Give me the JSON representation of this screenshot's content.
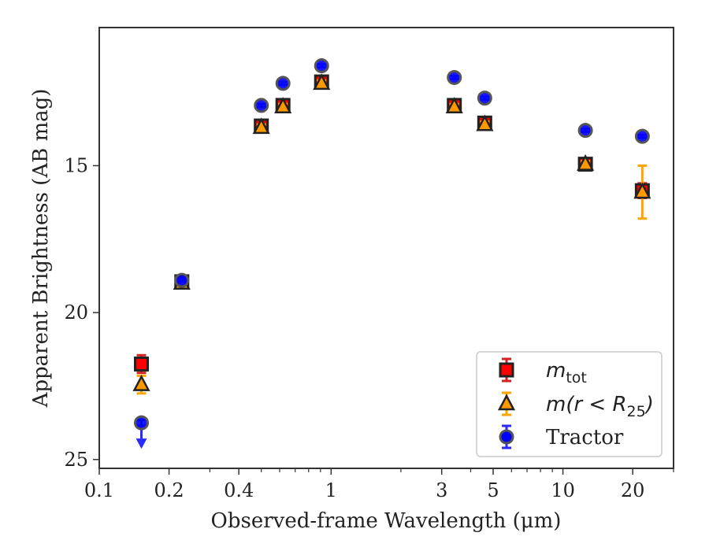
{
  "chart_data": {
    "type": "scatter",
    "xscale": "log",
    "xlim": [
      0.1,
      30
    ],
    "ylim": [
      25.3,
      10.3
    ],
    "y_inverted": true,
    "xlabel": "Observed-frame Wavelength (μm)",
    "ylabel": "Apparent Brightness (AB mag)",
    "x_ticks": [
      {
        "value": 0.1,
        "label": "0.1"
      },
      {
        "value": 0.2,
        "label": "0.2"
      },
      {
        "value": 0.4,
        "label": "0.4"
      },
      {
        "value": 1,
        "label": "1"
      },
      {
        "value": 3,
        "label": "3"
      },
      {
        "value": 5,
        "label": "5"
      },
      {
        "value": 10,
        "label": "10"
      },
      {
        "value": 20,
        "label": "20"
      }
    ],
    "y_ticks": [
      {
        "value": 15,
        "label": "15"
      },
      {
        "value": 20,
        "label": "20"
      },
      {
        "value": 25,
        "label": "25"
      }
    ],
    "grid": false,
    "legend_position": "lower-right",
    "series": [
      {
        "name": "m_tot",
        "legend_main": "m",
        "legend_sub": "tot",
        "legend_suffix": "",
        "marker": "square",
        "color": "#ff0000",
        "edge_color": "#222222",
        "error_color": "#d62020",
        "points": [
          {
            "x": 0.152,
            "y": 21.75,
            "err": 0.3
          },
          {
            "x": 0.227,
            "y": 18.95,
            "err": 0.08
          },
          {
            "x": 0.5,
            "y": 13.65,
            "err": 0.15
          },
          {
            "x": 0.62,
            "y": 12.95,
            "err": 0.15
          },
          {
            "x": 0.91,
            "y": 12.15,
            "err": 0.1
          },
          {
            "x": 3.4,
            "y": 12.95,
            "err": 0.1
          },
          {
            "x": 4.6,
            "y": 13.55,
            "err": 0.12
          },
          {
            "x": 12.5,
            "y": 14.95,
            "err": 0.1
          },
          {
            "x": 22.0,
            "y": 15.85,
            "err": 0.25
          }
        ]
      },
      {
        "name": "m(r < R25)",
        "legend_main": "m(r < R",
        "legend_sub": "25",
        "legend_suffix": ")",
        "marker": "triangle",
        "color": "#ff9900",
        "edge_color": "#222222",
        "error_color": "#ffa500",
        "points": [
          {
            "x": 0.152,
            "y": 22.45,
            "err": 0.3
          },
          {
            "x": 0.227,
            "y": 19.0,
            "err": 0.08
          },
          {
            "x": 0.5,
            "y": 13.7,
            "err": 0.1
          },
          {
            "x": 0.62,
            "y": 13.0,
            "err": 0.1
          },
          {
            "x": 0.91,
            "y": 12.2,
            "err": 0.1
          },
          {
            "x": 3.4,
            "y": 13.0,
            "err": 0.1
          },
          {
            "x": 4.6,
            "y": 13.6,
            "err": 0.1
          },
          {
            "x": 12.5,
            "y": 14.95,
            "err": 0.1
          },
          {
            "x": 22.0,
            "y": 15.9,
            "err": 0.9
          }
        ]
      },
      {
        "name": "Tractor",
        "legend_main": "Tractor",
        "legend_sub": "",
        "legend_suffix": "",
        "marker": "circle",
        "color": "#0000ff",
        "edge_color": "#555555",
        "error_color": "#2a2aff",
        "points": [
          {
            "x": 0.152,
            "y": 23.75,
            "err": 0.1,
            "upper_limit": true
          },
          {
            "x": 0.227,
            "y": 18.9,
            "err": 0.05
          },
          {
            "x": 0.5,
            "y": 12.95,
            "err": 0.05
          },
          {
            "x": 0.62,
            "y": 12.2,
            "err": 0.05
          },
          {
            "x": 0.91,
            "y": 11.6,
            "err": 0.05
          },
          {
            "x": 3.4,
            "y": 12.0,
            "err": 0.05
          },
          {
            "x": 4.6,
            "y": 12.7,
            "err": 0.05
          },
          {
            "x": 12.5,
            "y": 13.8,
            "err": 0.05
          },
          {
            "x": 22.0,
            "y": 14.0,
            "err": 0.05
          }
        ]
      }
    ]
  }
}
